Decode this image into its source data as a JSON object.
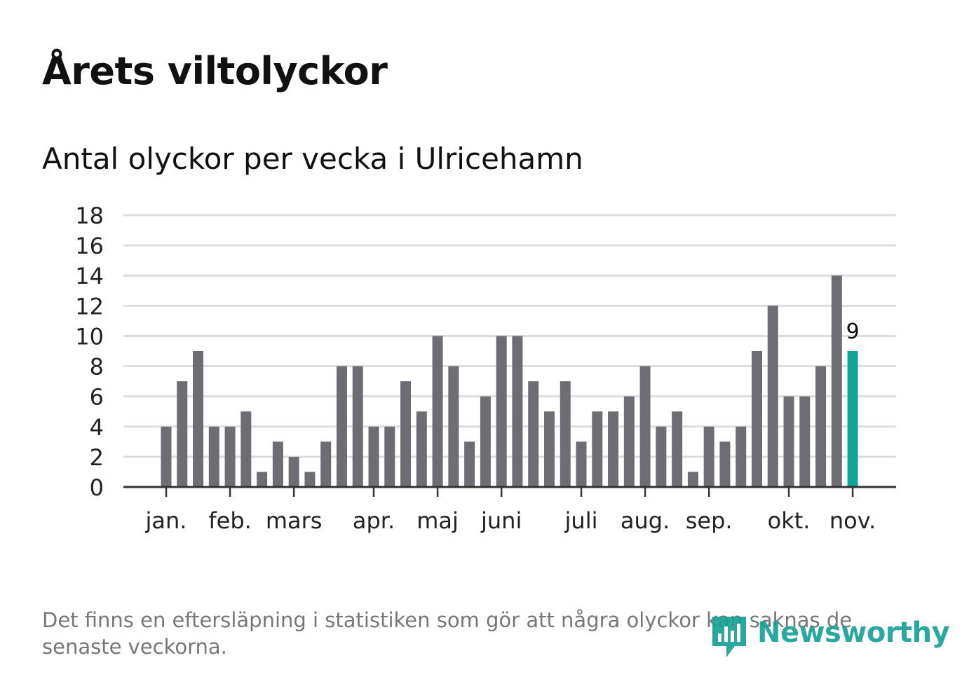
{
  "header": {
    "title": "Årets viltolyckor",
    "subtitle": "Antal olyckor per vecka i Ulricehamn"
  },
  "footnote": "Det finns en eftersläpning i statistiken som gör att några olyckor kan saknas de senaste veckorna.",
  "logo": {
    "text": "Newsworthy",
    "icon": "newsworthy-bar-icon"
  },
  "colors": {
    "bar": "#6e6d73",
    "highlight": "#10a59a",
    "grid": "#dddddd",
    "axis": "#333333"
  },
  "chart_data": {
    "type": "bar",
    "title": "Antal olyckor per vecka i Ulricehamn",
    "xlabel": "",
    "ylabel": "",
    "ylim": [
      0,
      18
    ],
    "yticks": [
      0,
      2,
      4,
      6,
      8,
      10,
      12,
      14,
      16,
      18
    ],
    "grid": true,
    "values": [
      4,
      7,
      9,
      4,
      4,
      5,
      1,
      3,
      2,
      1,
      3,
      8,
      8,
      4,
      4,
      7,
      5,
      10,
      8,
      3,
      6,
      10,
      10,
      7,
      5,
      7,
      3,
      5,
      5,
      6,
      8,
      4,
      5,
      1,
      4,
      3,
      4,
      9,
      12,
      6,
      6,
      8,
      14,
      9
    ],
    "highlight_index": 43,
    "highlight_label": "9",
    "month_labels": [
      {
        "label": "jan.",
        "bar_index": 0
      },
      {
        "label": "feb.",
        "bar_index": 4
      },
      {
        "label": "mars",
        "bar_index": 8
      },
      {
        "label": "apr.",
        "bar_index": 13
      },
      {
        "label": "maj",
        "bar_index": 17
      },
      {
        "label": "juni",
        "bar_index": 21
      },
      {
        "label": "juli",
        "bar_index": 26
      },
      {
        "label": "aug.",
        "bar_index": 30
      },
      {
        "label": "sep.",
        "bar_index": 34
      },
      {
        "label": "okt.",
        "bar_index": 39
      },
      {
        "label": "nov.",
        "bar_index": 43
      }
    ]
  }
}
